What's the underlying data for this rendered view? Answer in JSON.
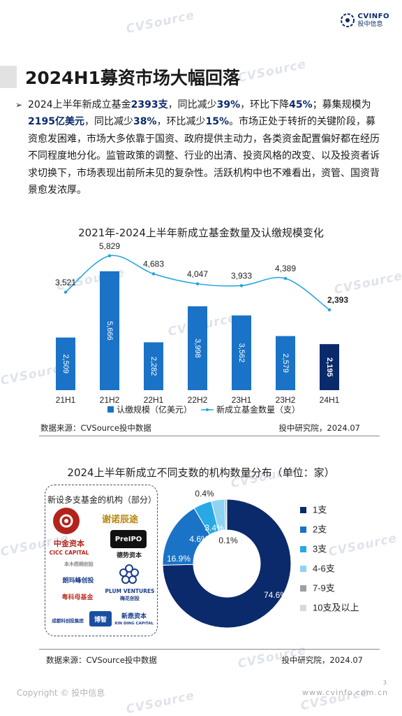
{
  "header": {
    "logo_en": "CVINFO",
    "logo_cn": "投中信息",
    "title": "2024H1募资市场大幅回落"
  },
  "paragraph": {
    "bullet": "➢",
    "s1": "2024上半年新成立基金",
    "v1": "2393支",
    "s2": "，同比减少",
    "v2": "39%",
    "s3": "，环比下降",
    "v3": "45%",
    "s4": "；募集规模为",
    "v4": "2195亿美元",
    "s5": "，同比减少",
    "v5": "38%",
    "s6": "，环比减少",
    "v6": "15%",
    "s7": "。市场正处于转折的关键阶段，募资愈发困难，市场大多依靠于国资、政府提供主动力，各类资金配置偏好都在经历不同程度地分化。监管政策的调整、行业的出清、投资风格的改变、以及投资者诉求切换下，市场表现出前所未见的复杂性。活跃机构中也不难看出，资管、国资背景愈发浓厚。"
  },
  "chart_data": [
    {
      "type": "bar",
      "title": "2021年-2024上半年新成立基金数量及认缴规模变化",
      "categories": [
        "21H1",
        "21H2",
        "22H1",
        "22H2",
        "23H1",
        "23H2",
        "24H1"
      ],
      "series": [
        {
          "name": "认缴规模（亿美元）",
          "type": "bar",
          "values": [
            2509,
            5666,
            2282,
            3998,
            3562,
            2579,
            2195
          ],
          "color": "#1a73c6",
          "highlight_color": "#0b2a6b"
        },
        {
          "name": "新成立基金数量（支）",
          "type": "line",
          "values": [
            3521,
            5829,
            4683,
            4047,
            3933,
            4389,
            2393
          ],
          "color": "#1fa3e0"
        }
      ],
      "labels": {
        "bar": [
          "2,509",
          "5,666",
          "2,282",
          "3,998",
          "3,562",
          "2,579",
          "2,195"
        ],
        "line": [
          "3,521",
          "5,829",
          "4,683",
          "4,047",
          "3,933",
          "4,389",
          "2,393"
        ]
      },
      "legend_position": "bottom",
      "grid": false
    },
    {
      "type": "pie",
      "title": "2024上半年新成立不同支数的机构数量分布（单位：家）",
      "slices": [
        {
          "label": "1支",
          "value": 74.6,
          "text": "74.6%",
          "color": "#0b2a6b"
        },
        {
          "label": "2支",
          "value": 16.9,
          "text": "16.9%",
          "color": "#1a73c6"
        },
        {
          "label": "3支",
          "value": 4.6,
          "text": "4.6%",
          "color": "#27a9e6"
        },
        {
          "label": "4-6支",
          "value": 3.4,
          "text": "3.4%",
          "color": "#8fd3f2"
        },
        {
          "label": "7-9支",
          "value": 0.4,
          "text": "0.4%",
          "color": "#9aa0a6"
        },
        {
          "label": "10支及以上",
          "value": 0.1,
          "text": "0.1%",
          "color": "#d9d9d9"
        }
      ],
      "donut": true,
      "legend_position": "right"
    }
  ],
  "chart1_source": "数据来源：CVSource投中数据",
  "chart1_credit": "投中研究院，2024.07",
  "chart2_source": "数据来源：CVSource投中数据",
  "chart2_credit": "投中研究院，2024.07",
  "institutions": {
    "title": "新设多支基金的机构（部分）",
    "logos": [
      "谢诺辰途",
      "中金资本",
      "CICC CAPITAL",
      "PreIPO",
      "德势资本",
      "本木梧桐创投",
      "朗玛峰创投",
      "PLUM VENTURES",
      "梅花创投",
      "粤科母基金",
      "成都科创投集团",
      "博智",
      "新鼎资本",
      "XIN DING CAPITAL"
    ]
  },
  "footer": {
    "copyright": "Copyright © 投中信息",
    "website": "www.cvinfo.com.cn",
    "page": "3"
  },
  "watermark": "CVSource"
}
